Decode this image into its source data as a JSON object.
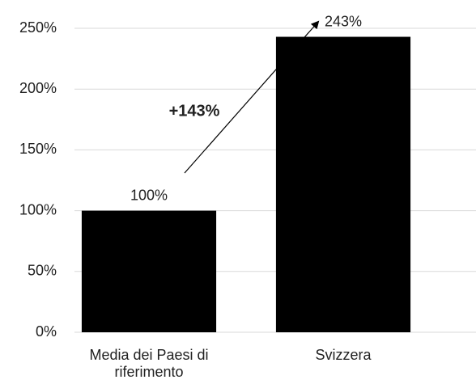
{
  "chart_data": {
    "type": "bar",
    "categories": [
      "Media dei Paesi di riferimento",
      "Svizzera"
    ],
    "values": [
      100,
      243
    ],
    "value_labels": [
      "100%",
      "243%"
    ],
    "color": "#000000",
    "ylim": [
      0,
      250
    ],
    "yticks": [
      {
        "value": 0,
        "label": "0%"
      },
      {
        "value": 50,
        "label": "50%"
      },
      {
        "value": 100,
        "label": "100%"
      },
      {
        "value": 150,
        "label": "150%"
      },
      {
        "value": 200,
        "label": "200%"
      },
      {
        "value": 250,
        "label": "250%"
      }
    ],
    "grid": true,
    "annotations": [
      "+143%"
    ]
  }
}
